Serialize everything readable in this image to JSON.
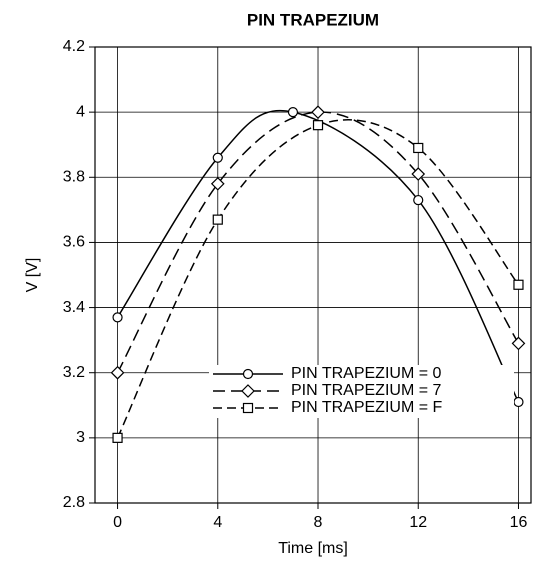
{
  "chart_data": {
    "type": "line",
    "title": "PIN TRAPEZIUM",
    "xlabel": "Time [ms]",
    "ylabel": "V [V]",
    "xlim": [
      -0.9,
      16.5
    ],
    "xticks": [
      0,
      4,
      8,
      12,
      16
    ],
    "ylim": [
      2.8,
      4.2
    ],
    "yticks": [
      2.8,
      3,
      3.2,
      3.4,
      3.6,
      3.8,
      4,
      4.2
    ],
    "grid": true,
    "legend": "lower right",
    "series": [
      {
        "name": "PIN TRAPEZIUM = 0",
        "color": "#000000",
        "marker": "circle",
        "dash": "solid",
        "x": [
          0,
          4,
          7,
          12,
          16
        ],
        "values": [
          3.37,
          3.86,
          4.0,
          3.73,
          3.11
        ]
      },
      {
        "name": "PIN TRAPEZIUM = 7",
        "color": "#000000",
        "marker": "diamond",
        "dash": "long",
        "x": [
          0,
          4,
          8,
          12,
          16
        ],
        "values": [
          3.2,
          3.78,
          4.0,
          3.81,
          3.29
        ]
      },
      {
        "name": "PIN TRAPEZIUM = F",
        "color": "#000000",
        "marker": "square",
        "dash": "short",
        "x": [
          0,
          4,
          8,
          12,
          16
        ],
        "values": [
          3.0,
          3.67,
          3.96,
          3.89,
          3.47
        ]
      }
    ]
  }
}
